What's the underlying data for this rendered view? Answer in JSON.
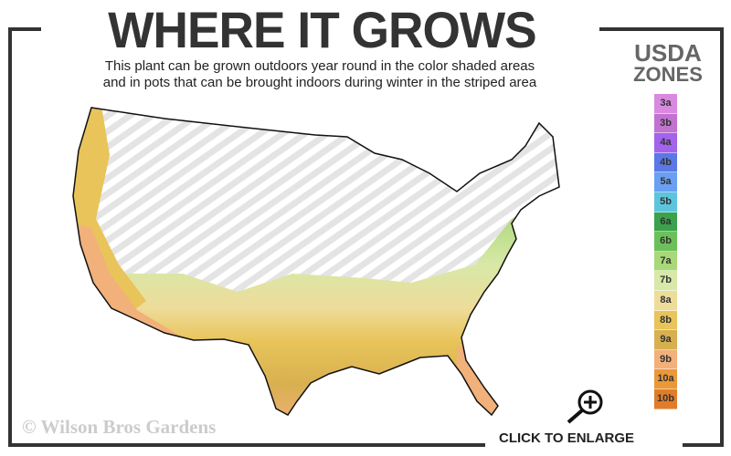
{
  "header": {
    "title": "WHERE IT GROWS",
    "subtitle_line1": "This plant can be grown outdoors year round in the color shaded areas",
    "subtitle_line2": "and in pots that can be brought indoors during winter in the striped area"
  },
  "legend": {
    "title_line1": "USDA",
    "title_line2": "ZONES",
    "zones": [
      {
        "label": "3a",
        "color": "#d98ae0"
      },
      {
        "label": "3b",
        "color": "#c272d0"
      },
      {
        "label": "4a",
        "color": "#a363ec"
      },
      {
        "label": "4b",
        "color": "#5a78e6"
      },
      {
        "label": "5a",
        "color": "#6aa0f2"
      },
      {
        "label": "5b",
        "color": "#5cc5de"
      },
      {
        "label": "6a",
        "color": "#3aa24a"
      },
      {
        "label": "6b",
        "color": "#6cc05a"
      },
      {
        "label": "7a",
        "color": "#a8d877"
      },
      {
        "label": "7b",
        "color": "#d8e8a8"
      },
      {
        "label": "8a",
        "color": "#eedc9a"
      },
      {
        "label": "8b",
        "color": "#e8c45a"
      },
      {
        "label": "9a",
        "color": "#d8b050"
      },
      {
        "label": "9b",
        "color": "#f2b07a"
      },
      {
        "label": "10a",
        "color": "#eb9838"
      },
      {
        "label": "10b",
        "color": "#e07d2a"
      }
    ]
  },
  "map": {
    "region": "Contiguous United States",
    "shaded_zones": [
      "7a",
      "7b",
      "8a",
      "8b",
      "9a",
      "9b",
      "10a",
      "10b"
    ],
    "striped_zones": [
      "3a",
      "3b",
      "4a",
      "4b",
      "5a",
      "5b",
      "6a",
      "6b"
    ]
  },
  "footer": {
    "copyright": "© Wilson Bros Gardens",
    "enlarge_label": "CLICK TO ENLARGE",
    "enlarge_icon": "zoom-in-icon"
  }
}
